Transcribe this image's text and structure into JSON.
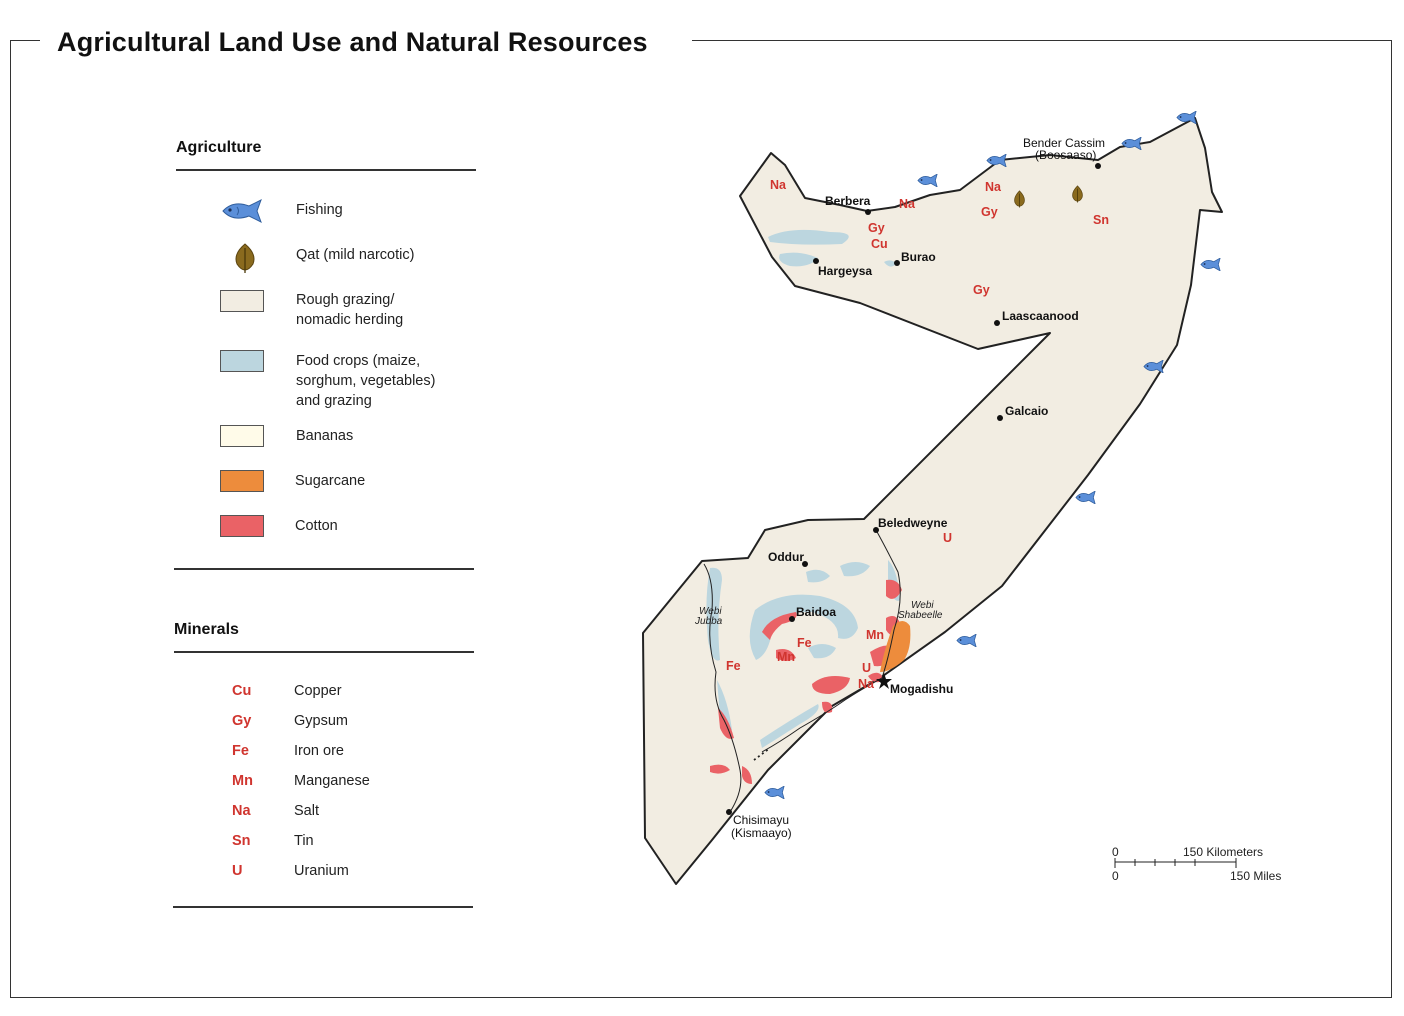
{
  "title": "Agricultural Land Use and Natural Resources",
  "legend": {
    "agriculture_heading": "Agriculture",
    "agriculture_items": [
      {
        "label": "Fishing",
        "icon": "fish-icon",
        "color": "#5b8fd9"
      },
      {
        "label": "Qat (mild narcotic)",
        "icon": "leaf-icon",
        "color": "#8a6a1e"
      },
      {
        "label": "Rough grazing/\nnomadic herding",
        "color": "#f2ede2"
      },
      {
        "label": "Food crops (maize,\nsorghum, vegetables)\nand grazing",
        "color": "#bcd6df"
      },
      {
        "label": "Bananas",
        "color": "#fffbe9"
      },
      {
        "label": "Sugarcane",
        "color": "#ed8c3c"
      },
      {
        "label": "Cotton",
        "color": "#ea6266"
      }
    ],
    "minerals_heading": "Minerals",
    "minerals": [
      {
        "code": "Cu",
        "name": "Copper"
      },
      {
        "code": "Gy",
        "name": "Gypsum"
      },
      {
        "code": "Fe",
        "name": "Iron ore"
      },
      {
        "code": "Mn",
        "name": "Manganese"
      },
      {
        "code": "Na",
        "name": "Salt"
      },
      {
        "code": "Sn",
        "name": "Tin"
      },
      {
        "code": "U",
        "name": "Uranium"
      }
    ],
    "mineral_color": "#d0352f"
  },
  "map": {
    "cities": {
      "berbera": "Berbera",
      "bender_cassim": "Bender Cassim",
      "boosaaso": "(Boosaaso)",
      "hargeysa": "Hargeysa",
      "burao": "Burao",
      "laascaanood": "Laascaanood",
      "galcaio": "Galcaio",
      "beledweyne": "Beledweyne",
      "oddur": "Oddur",
      "baidoa": "Baidoa",
      "mogadishu": "Mogadishu",
      "chisimayu": "Chisimayu",
      "kismaayo": "(Kismaayo)"
    },
    "rivers": {
      "webi_jubba_1": "Webi",
      "webi_jubba_2": "Jubba",
      "webi_shabeelle_1": "Webi",
      "webi_shabeelle_2": "Shabeelle"
    },
    "mineral_labels": {
      "na_nw": "Na",
      "na_berbera": "Na",
      "na_north": "Na",
      "na_mogadishu": "Na",
      "gy_berbera": "Gy",
      "gy_north": "Gy",
      "gy_mid": "Gy",
      "cu_berbera": "Cu",
      "sn_ne": "Sn",
      "u_beledweyne": "U",
      "u_mogadishu": "U",
      "mn_south": "Mn",
      "mn_coast": "Mn",
      "fe_baidoa": "Fe",
      "fe_jubba": "Fe"
    },
    "scale": {
      "zero_km": "0",
      "km_label": "150 Kilometers",
      "zero_mi": "0",
      "mi_label": "150 Miles"
    },
    "colors": {
      "land": "#f2ede2",
      "food": "#bcd6df",
      "cotton": "#ea6266",
      "sugarcane": "#ed8c3c",
      "fish": "#5b8fd9",
      "qat": "#8a6a1e"
    }
  }
}
